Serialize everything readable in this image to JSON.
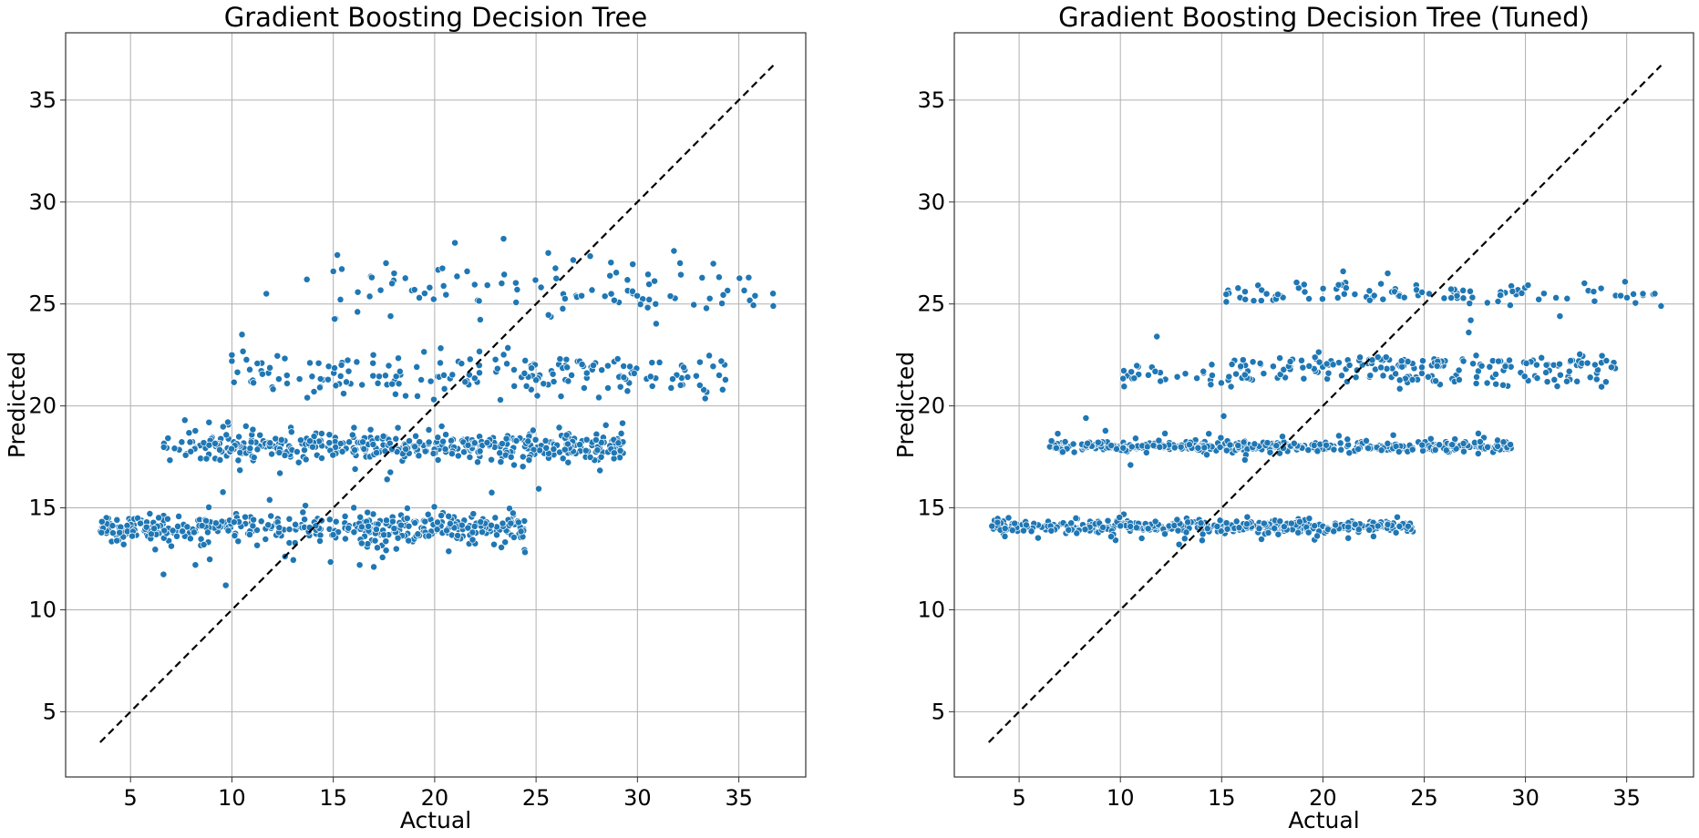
{
  "figure": {
    "background": "#ffffff"
  },
  "chart_data": [
    {
      "type": "scatter",
      "title": "Gradient Boosting Decision Tree",
      "xlabel": "Actual",
      "ylabel": "Predicted",
      "xlim": [
        1.8,
        38.3
      ],
      "ylim": [
        1.8,
        38.3
      ],
      "xticks": [
        5,
        10,
        15,
        20,
        25,
        30,
        35
      ],
      "yticks": [
        5,
        10,
        15,
        20,
        25,
        30,
        35
      ],
      "grid": true,
      "marker_color": "#1f77b4",
      "marker_edge_color": "#ffffff",
      "reference_line": {
        "style": "dashed",
        "color": "#000000",
        "x": [
          3.5,
          36.7
        ],
        "y": [
          3.5,
          36.7
        ]
      },
      "clusters": [
        {
          "x_range": [
            3.5,
            24.5
          ],
          "y_center": 14.0,
          "y_spread": 0.35,
          "n": 380
        },
        {
          "x_range": [
            3.6,
            24.5
          ],
          "y_center": 13.8,
          "y_spread": 0.9,
          "n": 60
        },
        {
          "x_range": [
            6.5,
            29.3
          ],
          "y_center": 18.0,
          "y_spread": 0.3,
          "n": 380
        },
        {
          "x_range": [
            6.5,
            29.3
          ],
          "y_center": 18.0,
          "y_spread": 0.8,
          "n": 70
        },
        {
          "x_range": [
            10.0,
            34.5
          ],
          "y_center": 21.6,
          "y_spread": 0.55,
          "n": 190
        },
        {
          "x_range": [
            15.0,
            36.7
          ],
          "y_center": 25.6,
          "y_spread": 0.7,
          "n": 90
        }
      ],
      "outliers": [
        {
          "x": 9.7,
          "y": 11.2
        },
        {
          "x": 9.8,
          "y": 19.2
        },
        {
          "x": 10.0,
          "y": 22.2
        },
        {
          "x": 10.0,
          "y": 22.5
        },
        {
          "x": 10.5,
          "y": 23.5
        },
        {
          "x": 11.7,
          "y": 25.5
        },
        {
          "x": 13.7,
          "y": 26.2
        },
        {
          "x": 15.0,
          "y": 26.6
        },
        {
          "x": 15.2,
          "y": 27.4
        },
        {
          "x": 16.9,
          "y": 26.3
        },
        {
          "x": 17.6,
          "y": 27.0
        },
        {
          "x": 18.0,
          "y": 26.5
        },
        {
          "x": 21.0,
          "y": 28.0
        },
        {
          "x": 21.6,
          "y": 26.6
        },
        {
          "x": 23.4,
          "y": 28.2
        },
        {
          "x": 25.6,
          "y": 27.5
        },
        {
          "x": 31.8,
          "y": 27.6
        },
        {
          "x": 32.1,
          "y": 27.0
        },
        {
          "x": 36.7,
          "y": 24.9
        },
        {
          "x": 35.8,
          "y": 25.4
        },
        {
          "x": 16.3,
          "y": 12.2
        },
        {
          "x": 17.0,
          "y": 12.1
        },
        {
          "x": 8.2,
          "y": 12.2
        }
      ]
    },
    {
      "type": "scatter",
      "title": "Gradient Boosting Decision Tree (Tuned)",
      "xlabel": "Actual",
      "ylabel": "Predicted",
      "xlim": [
        1.8,
        38.3
      ],
      "ylim": [
        1.8,
        38.3
      ],
      "xticks": [
        5,
        10,
        15,
        20,
        25,
        30,
        35
      ],
      "yticks": [
        5,
        10,
        15,
        20,
        25,
        30,
        35
      ],
      "grid": true,
      "marker_color": "#1f77b4",
      "marker_edge_color": "#ffffff",
      "reference_line": {
        "style": "dashed",
        "color": "#000000",
        "x": [
          3.5,
          36.7
        ],
        "y": [
          3.5,
          36.7
        ]
      },
      "clusters": [
        {
          "x_range": [
            3.5,
            24.5
          ],
          "y_center": 14.1,
          "y_spread": 0.15,
          "n": 380
        },
        {
          "x_range": [
            4.0,
            24.5
          ],
          "y_center": 14.0,
          "y_spread": 0.35,
          "n": 50
        },
        {
          "x_range": [
            6.5,
            29.3
          ],
          "y_center": 18.0,
          "y_spread": 0.12,
          "n": 380
        },
        {
          "x_range": [
            6.5,
            29.3
          ],
          "y_center": 18.1,
          "y_spread": 0.35,
          "n": 60
        },
        {
          "x_range": [
            10.0,
            34.5
          ],
          "y_center": 21.5,
          "y_spread": 0.25,
          "n": 120
        },
        {
          "x_range": [
            14.0,
            34.5
          ],
          "y_center": 22.1,
          "y_spread": 0.15,
          "n": 110
        },
        {
          "x_range": [
            15.0,
            36.7
          ],
          "y_center": 25.5,
          "y_spread": 0.25,
          "n": 100
        }
      ],
      "outliers": [
        {
          "x": 10.5,
          "y": 17.1
        },
        {
          "x": 8.3,
          "y": 19.4
        },
        {
          "x": 11.8,
          "y": 23.4
        },
        {
          "x": 15.1,
          "y": 19.5
        },
        {
          "x": 21.0,
          "y": 26.6
        },
        {
          "x": 23.2,
          "y": 26.5
        },
        {
          "x": 27.3,
          "y": 24.2
        },
        {
          "x": 27.2,
          "y": 23.6
        },
        {
          "x": 31.7,
          "y": 24.4
        },
        {
          "x": 36.7,
          "y": 24.9
        },
        {
          "x": 35.8,
          "y": 25.5
        },
        {
          "x": 22.5,
          "y": 13.6
        },
        {
          "x": 4.3,
          "y": 13.6
        }
      ]
    }
  ]
}
